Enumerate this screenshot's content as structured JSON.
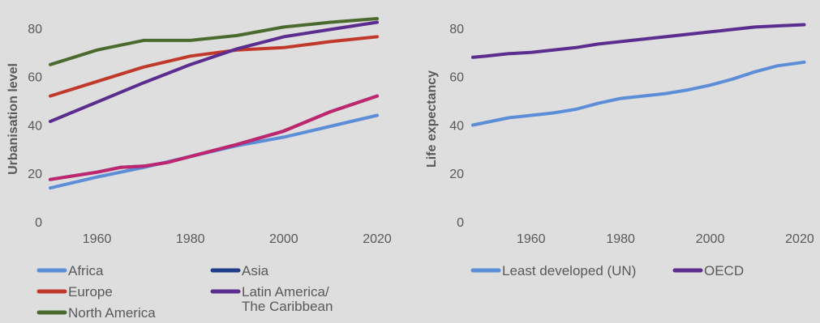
{
  "chart_data": [
    {
      "type": "line",
      "title": "",
      "xlabel": "",
      "ylabel": "Urbanisation level",
      "xlim": [
        1950,
        2020
      ],
      "ylim": [
        0,
        85
      ],
      "x_ticks": [
        1960,
        1980,
        2000,
        2020
      ],
      "y_ticks": [
        0,
        20,
        40,
        60,
        80
      ],
      "grid": false,
      "legend_position": "bottom",
      "legend": [
        "Africa",
        "Asia",
        "Europe",
        "Latin America/ The Caribbean",
        "North America"
      ],
      "series": [
        {
          "name": "Africa",
          "color": "#5b8ed6",
          "x": [
            1950,
            1960,
            1970,
            1980,
            1990,
            2000,
            2010,
            2020
          ],
          "y": [
            14.0,
            18.5,
            22.5,
            27.0,
            31.5,
            35.0,
            39.5,
            44.0
          ]
        },
        {
          "name": "Asia",
          "color": "#1f3c88",
          "x": [
            1950,
            1960,
            1965,
            1970,
            1975,
            1980,
            1990,
            2000,
            2010,
            2020
          ],
          "y": [
            17.5,
            20.5,
            22.5,
            23.0,
            24.5,
            27.0,
            32.0,
            37.5,
            45.5,
            52.0
          ]
        },
        {
          "name": "Europe",
          "color": "#c0392b",
          "x": [
            1950,
            1960,
            1970,
            1980,
            1990,
            2000,
            2010,
            2020
          ],
          "y": [
            52.0,
            58.0,
            64.0,
            68.5,
            71.0,
            72.0,
            74.5,
            76.5
          ]
        },
        {
          "name": "Latin America/ The Caribbean",
          "color": "#5b2d8e",
          "x": [
            1950,
            1960,
            1970,
            1980,
            1990,
            2000,
            2010,
            2020
          ],
          "y": [
            41.5,
            49.5,
            57.5,
            65.0,
            71.5,
            76.5,
            79.5,
            82.5
          ]
        },
        {
          "name": "North America",
          "color": "#4b6b2e",
          "x": [
            1950,
            1960,
            1970,
            1980,
            1990,
            2000,
            2010,
            2020
          ],
          "y": [
            65.0,
            71.0,
            75.0,
            75.0,
            77.0,
            80.5,
            82.5,
            84.0
          ]
        },
        {
          "name": "",
          "color": "#c0266d",
          "x": [
            1950,
            1960,
            1965,
            1970,
            1975,
            1980,
            1990,
            2000,
            2010,
            2020
          ],
          "y": [
            17.5,
            20.5,
            22.5,
            23.0,
            24.5,
            27.0,
            32.0,
            37.5,
            45.5,
            52.0
          ]
        }
      ]
    },
    {
      "type": "line",
      "title": "",
      "xlabel": "",
      "ylabel": "Life expectancy",
      "xlim": [
        1947,
        2022
      ],
      "ylim": [
        0,
        85
      ],
      "x_ticks": [
        1960,
        1980,
        2000,
        2020
      ],
      "y_ticks": [
        0,
        20,
        40,
        60,
        80
      ],
      "grid": false,
      "legend_position": "bottom",
      "legend": [
        "Least developed (UN)",
        "OECD"
      ],
      "series": [
        {
          "name": "Least developed (UN)",
          "color": "#5b8ed6",
          "x": [
            1947,
            1955,
            1960,
            1965,
            1970,
            1975,
            1980,
            1985,
            1990,
            1995,
            2000,
            2005,
            2010,
            2015,
            2021
          ],
          "y": [
            40.0,
            43.0,
            44.0,
            45.0,
            46.5,
            49.0,
            51.0,
            52.0,
            53.0,
            54.5,
            56.5,
            59.0,
            62.0,
            64.5,
            66.0
          ]
        },
        {
          "name": "OECD",
          "color": "#5b2d8e",
          "x": [
            1947,
            1950,
            1955,
            1960,
            1965,
            1970,
            1975,
            1980,
            1985,
            1990,
            1995,
            2000,
            2005,
            2010,
            2015,
            2021
          ],
          "y": [
            68.0,
            68.5,
            69.5,
            70.0,
            71.0,
            72.0,
            73.5,
            74.5,
            75.5,
            76.5,
            77.5,
            78.5,
            79.5,
            80.5,
            81.0,
            81.5
          ]
        }
      ]
    }
  ]
}
